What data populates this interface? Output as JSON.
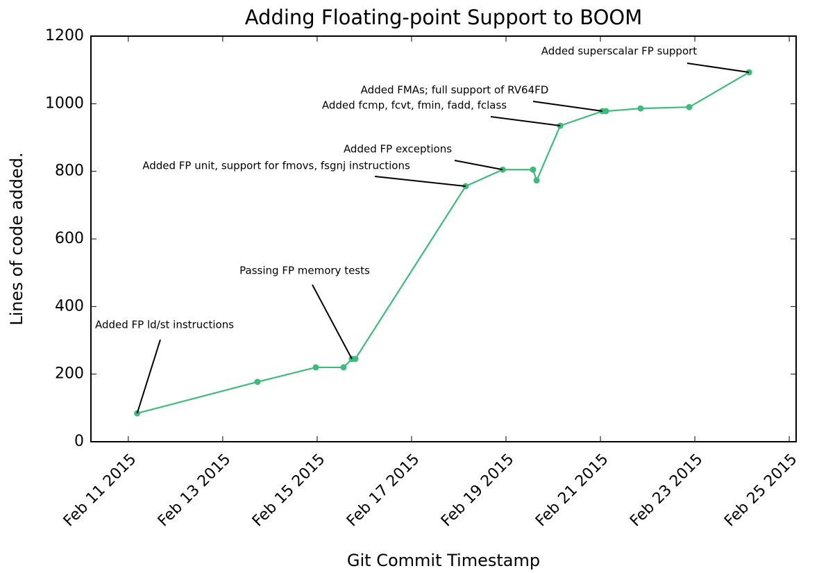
{
  "chart_data": {
    "type": "line",
    "title": "Adding Floating-point Support to BOOM",
    "xlabel": "Git Commit Timestamp",
    "ylabel": "Lines of code added.",
    "x": [
      "2015-02-11T04:30",
      "2015-02-13T17:40",
      "2015-02-14T23:20",
      "2015-02-15T13:25",
      "2015-02-15T17:40",
      "2015-02-15T19:25",
      "2015-02-18T03:30",
      "2015-02-18T22:20",
      "2015-02-19T13:45",
      "2015-02-19T15:35",
      "2015-02-20T03:35",
      "2015-02-21T01:00",
      "2015-02-21T02:50",
      "2015-02-21T20:25",
      "2015-02-22T21:10",
      "2015-02-24T03:35"
    ],
    "series": [
      {
        "name": "Lines of code added.",
        "color": "#3dbb7c",
        "values": [
          84,
          177,
          220,
          220,
          245,
          245,
          756,
          805,
          805,
          773,
          935,
          978,
          978,
          986,
          990,
          1093
        ]
      }
    ],
    "xlim": [
      "2015-02-10T05:00",
      "2015-02-25T03:30"
    ],
    "xticks": [
      {
        "value": "2015-02-11",
        "label": "Feb 11 2015"
      },
      {
        "value": "2015-02-13",
        "label": "Feb 13 2015"
      },
      {
        "value": "2015-02-15",
        "label": "Feb 15 2015"
      },
      {
        "value": "2015-02-17",
        "label": "Feb 17 2015"
      },
      {
        "value": "2015-02-19",
        "label": "Feb 19 2015"
      },
      {
        "value": "2015-02-21",
        "label": "Feb 21 2015"
      },
      {
        "value": "2015-02-23",
        "label": "Feb 23 2015"
      },
      {
        "value": "2015-02-25",
        "label": "Feb 25 2015"
      }
    ],
    "ylim": [
      0,
      1200
    ],
    "yticks": [
      0,
      200,
      400,
      600,
      800,
      1000,
      1200
    ],
    "grid": false,
    "annotations": [
      "Added FP ld/st instructions",
      "Passing FP memory tests",
      "Added FP unit, support for fmovs, fsgnj instructions",
      "Added FP exceptions",
      "Added fcmp, fcvt, fmin, fadd, fclass",
      "Added FMAs; full support of RV64FD",
      "Added superscalar FP support"
    ]
  }
}
